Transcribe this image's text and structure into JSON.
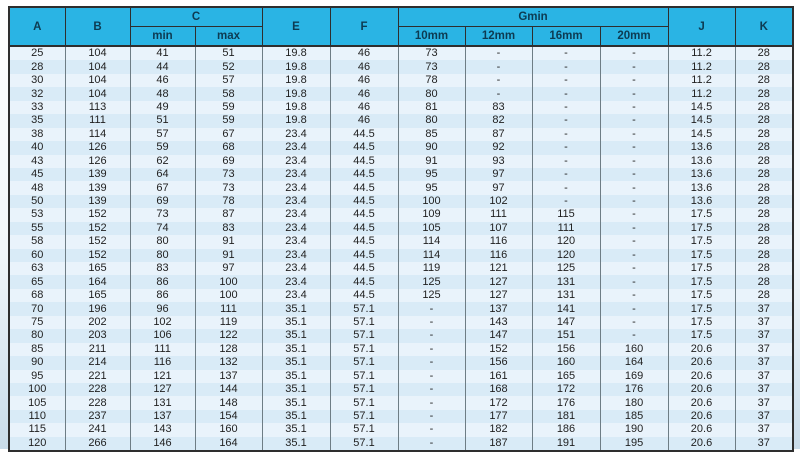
{
  "table": {
    "header": {
      "a": "A",
      "b": "B",
      "c": "C",
      "c_min": "min",
      "c_max": "max",
      "e": "E",
      "f": "F",
      "gmin": "Gmin",
      "g10": "10mm",
      "g12": "12mm",
      "g16": "16mm",
      "g20": "20mm",
      "j": "J",
      "k": "K"
    },
    "columns": [
      "A",
      "B",
      "C min",
      "C max",
      "E",
      "F",
      "Gmin 10mm",
      "Gmin 12mm",
      "Gmin 16mm",
      "Gmin 20mm",
      "J",
      "K"
    ],
    "rows": [
      [
        "25",
        "104",
        "41",
        "51",
        "19.8",
        "46",
        "73",
        "-",
        "-",
        "-",
        "11.2",
        "28"
      ],
      [
        "28",
        "104",
        "44",
        "52",
        "19.8",
        "46",
        "73",
        "-",
        "-",
        "-",
        "11.2",
        "28"
      ],
      [
        "30",
        "104",
        "46",
        "57",
        "19.8",
        "46",
        "78",
        "-",
        "-",
        "-",
        "11.2",
        "28"
      ],
      [
        "32",
        "104",
        "48",
        "58",
        "19.8",
        "46",
        "80",
        "-",
        "-",
        "-",
        "11.2",
        "28"
      ],
      [
        "33",
        "113",
        "49",
        "59",
        "19.8",
        "46",
        "81",
        "83",
        "-",
        "-",
        "14.5",
        "28"
      ],
      [
        "35",
        "111",
        "51",
        "59",
        "19.8",
        "46",
        "80",
        "82",
        "-",
        "-",
        "14.5",
        "28"
      ],
      [
        "38",
        "114",
        "57",
        "67",
        "23.4",
        "44.5",
        "85",
        "87",
        "-",
        "-",
        "14.5",
        "28"
      ],
      [
        "40",
        "126",
        "59",
        "68",
        "23.4",
        "44.5",
        "90",
        "92",
        "-",
        "-",
        "13.6",
        "28"
      ],
      [
        "43",
        "126",
        "62",
        "69",
        "23.4",
        "44.5",
        "91",
        "93",
        "-",
        "-",
        "13.6",
        "28"
      ],
      [
        "45",
        "139",
        "64",
        "73",
        "23.4",
        "44.5",
        "95",
        "97",
        "-",
        "-",
        "13.6",
        "28"
      ],
      [
        "48",
        "139",
        "67",
        "73",
        "23.4",
        "44.5",
        "95",
        "97",
        "-",
        "-",
        "13.6",
        "28"
      ],
      [
        "50",
        "139",
        "69",
        "78",
        "23.4",
        "44.5",
        "100",
        "102",
        "-",
        "-",
        "13.6",
        "28"
      ],
      [
        "53",
        "152",
        "73",
        "87",
        "23.4",
        "44.5",
        "109",
        "111",
        "115",
        "-",
        "17.5",
        "28"
      ],
      [
        "55",
        "152",
        "74",
        "83",
        "23.4",
        "44.5",
        "105",
        "107",
        "111",
        "-",
        "17.5",
        "28"
      ],
      [
        "58",
        "152",
        "80",
        "91",
        "23.4",
        "44.5",
        "114",
        "116",
        "120",
        "-",
        "17.5",
        "28"
      ],
      [
        "60",
        "152",
        "80",
        "91",
        "23.4",
        "44.5",
        "114",
        "116",
        "120",
        "-",
        "17.5",
        "28"
      ],
      [
        "63",
        "165",
        "83",
        "97",
        "23.4",
        "44.5",
        "119",
        "121",
        "125",
        "-",
        "17.5",
        "28"
      ],
      [
        "65",
        "164",
        "86",
        "100",
        "23.4",
        "44.5",
        "125",
        "127",
        "131",
        "-",
        "17.5",
        "28"
      ],
      [
        "68",
        "165",
        "86",
        "100",
        "23.4",
        "44.5",
        "125",
        "127",
        "131",
        "-",
        "17.5",
        "28"
      ],
      [
        "70",
        "196",
        "96",
        "111",
        "35.1",
        "57.1",
        "-",
        "137",
        "141",
        "-",
        "17.5",
        "37"
      ],
      [
        "75",
        "202",
        "102",
        "119",
        "35.1",
        "57.1",
        "-",
        "143",
        "147",
        "-",
        "17.5",
        "37"
      ],
      [
        "80",
        "203",
        "106",
        "122",
        "35.1",
        "57.1",
        "-",
        "147",
        "151",
        "-",
        "17.5",
        "37"
      ],
      [
        "85",
        "211",
        "111",
        "128",
        "35.1",
        "57.1",
        "-",
        "152",
        "156",
        "160",
        "20.6",
        "37"
      ],
      [
        "90",
        "214",
        "116",
        "132",
        "35.1",
        "57.1",
        "-",
        "156",
        "160",
        "164",
        "20.6",
        "37"
      ],
      [
        "95",
        "221",
        "121",
        "137",
        "35.1",
        "57.1",
        "-",
        "161",
        "165",
        "169",
        "20.6",
        "37"
      ],
      [
        "100",
        "228",
        "127",
        "144",
        "35.1",
        "57.1",
        "-",
        "168",
        "172",
        "176",
        "20.6",
        "37"
      ],
      [
        "105",
        "228",
        "131",
        "148",
        "35.1",
        "57.1",
        "-",
        "172",
        "176",
        "180",
        "20.6",
        "37"
      ],
      [
        "110",
        "237",
        "137",
        "154",
        "35.1",
        "57.1",
        "-",
        "177",
        "181",
        "185",
        "20.6",
        "37"
      ],
      [
        "115",
        "241",
        "143",
        "160",
        "35.1",
        "57.1",
        "-",
        "182",
        "186",
        "190",
        "20.6",
        "37"
      ],
      [
        "120",
        "266",
        "146",
        "164",
        "35.1",
        "57.1",
        "-",
        "187",
        "191",
        "195",
        "20.6",
        "37"
      ]
    ]
  },
  "colors": {
    "header_bg": "#2ab4e4",
    "header_text": "#0d3b52",
    "row_odd": "#e9f3fb",
    "row_even": "#d9ebf7",
    "border_dark": "#2e2e2e",
    "border_inner": "#6e7d85"
  }
}
